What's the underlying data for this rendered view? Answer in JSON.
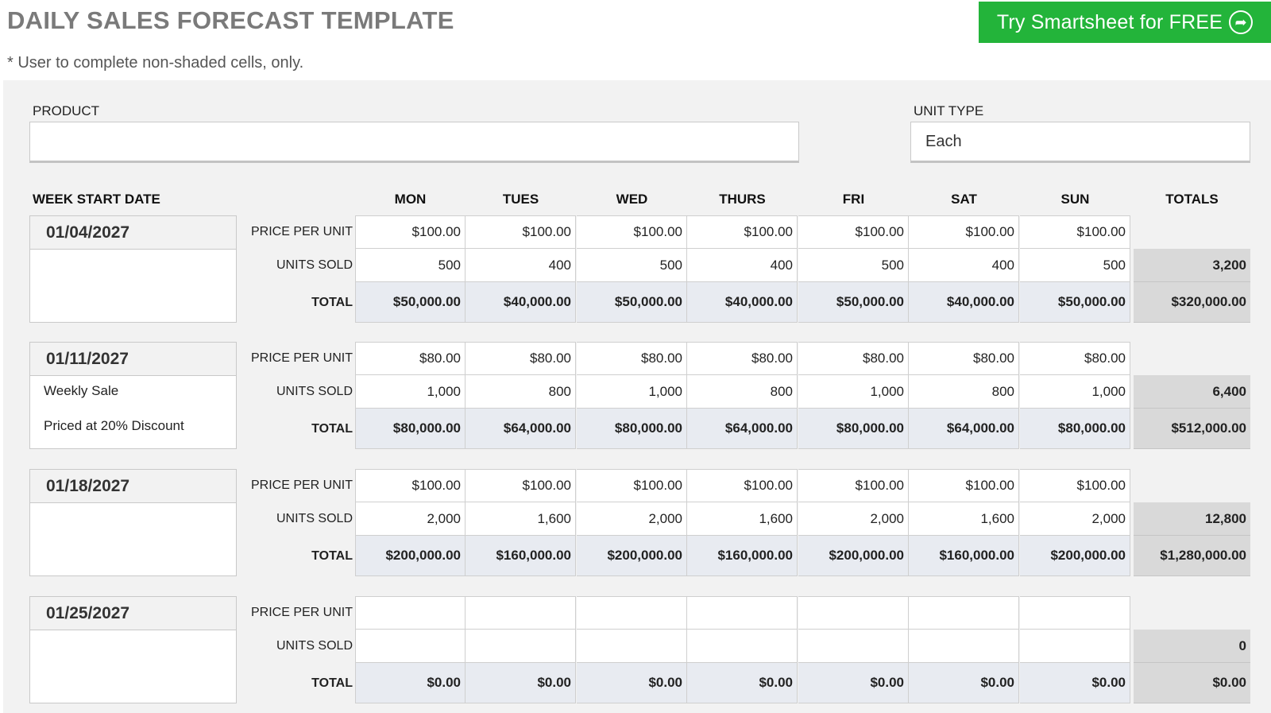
{
  "header": {
    "title": "DAILY SALES FORECAST TEMPLATE",
    "subtitle": "* User to complete non-shaded cells, only.",
    "cta_label": "Try Smartsheet for FREE"
  },
  "fields": {
    "product_label": "PRODUCT",
    "product_value": "",
    "unit_type_label": "UNIT TYPE",
    "unit_type_value": "Each"
  },
  "columns": {
    "week_start": "WEEK START DATE",
    "days": [
      "MON",
      "TUES",
      "WED",
      "THURS",
      "FRI",
      "SAT",
      "SUN"
    ],
    "totals": "TOTALS"
  },
  "row_labels": {
    "price": "PRICE PER UNIT",
    "units": "UNITS SOLD",
    "total": "TOTAL"
  },
  "weeks": [
    {
      "date": "01/04/2027",
      "notes": [],
      "price": [
        "$100.00",
        "$100.00",
        "$100.00",
        "$100.00",
        "$100.00",
        "$100.00",
        "$100.00"
      ],
      "units": [
        "500",
        "400",
        "500",
        "400",
        "500",
        "400",
        "500"
      ],
      "totals": [
        "$50,000.00",
        "$40,000.00",
        "$50,000.00",
        "$40,000.00",
        "$50,000.00",
        "$40,000.00",
        "$50,000.00"
      ],
      "units_total": "3,200",
      "grand_total": "$320,000.00"
    },
    {
      "date": "01/11/2027",
      "notes": [
        "Weekly Sale",
        "Priced at 20% Discount"
      ],
      "price": [
        "$80.00",
        "$80.00",
        "$80.00",
        "$80.00",
        "$80.00",
        "$80.00",
        "$80.00"
      ],
      "units": [
        "1,000",
        "800",
        "1,000",
        "800",
        "1,000",
        "800",
        "1,000"
      ],
      "totals": [
        "$80,000.00",
        "$64,000.00",
        "$80,000.00",
        "$64,000.00",
        "$80,000.00",
        "$64,000.00",
        "$80,000.00"
      ],
      "units_total": "6,400",
      "grand_total": "$512,000.00"
    },
    {
      "date": "01/18/2027",
      "notes": [],
      "price": [
        "$100.00",
        "$100.00",
        "$100.00",
        "$100.00",
        "$100.00",
        "$100.00",
        "$100.00"
      ],
      "units": [
        "2,000",
        "1,600",
        "2,000",
        "1,600",
        "2,000",
        "1,600",
        "2,000"
      ],
      "totals": [
        "$200,000.00",
        "$160,000.00",
        "$200,000.00",
        "$160,000.00",
        "$200,000.00",
        "$160,000.00",
        "$200,000.00"
      ],
      "units_total": "12,800",
      "grand_total": "$1,280,000.00"
    },
    {
      "date": "01/25/2027",
      "notes": [],
      "price": [
        "",
        "",
        "",
        "",
        "",
        "",
        ""
      ],
      "units": [
        "",
        "",
        "",
        "",
        "",
        "",
        ""
      ],
      "totals": [
        "$0.00",
        "$0.00",
        "$0.00",
        "$0.00",
        "$0.00",
        "$0.00",
        "$0.00"
      ],
      "units_total": "0",
      "grand_total": "$0.00"
    }
  ]
}
